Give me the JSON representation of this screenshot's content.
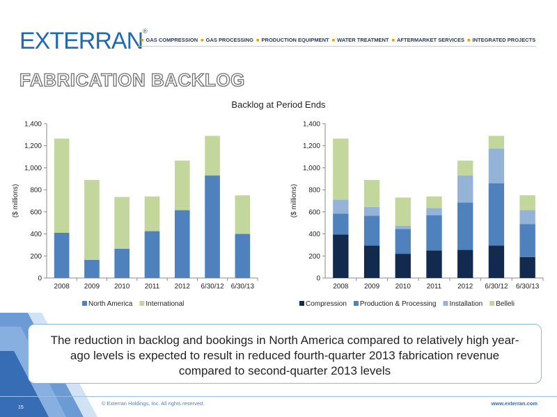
{
  "header": {
    "logo_text": "EXTERRAN",
    "logo_mark": "®",
    "nav_items": [
      "GAS COMPRESSION",
      "GAS PROCESSING",
      "PRODUCTION EQUIPMENT",
      "WATER TREATMENT",
      "AFTERMARKET SERVICES",
      "INTEGRATED PROJECTS"
    ]
  },
  "slide_title": "FABRICATION BACKLOG",
  "shared_chart_title": "Backlog at Period Ends",
  "callout_text": "The reduction in backlog and bookings in North America compared to relatively high year-ago levels is expected to result in reduced fourth-quarter 2013 fabrication revenue compared to second-quarter 2013 levels",
  "footer": {
    "page_number": "15",
    "copyright": "© Exterran Holdings, Inc. All rights reserved.",
    "url": "www.exterran.com"
  },
  "chart_data": [
    {
      "type": "bar",
      "stacked": true,
      "title": "",
      "xlabel": "",
      "ylabel": "($ millions)",
      "ylim": [
        0,
        1400
      ],
      "yticks": [
        0,
        200,
        400,
        600,
        800,
        1000,
        1200,
        1400
      ],
      "ytick_labels": [
        "0",
        "200",
        "400",
        "600",
        "800",
        "1,000",
        "1,200",
        "1,400"
      ],
      "categories": [
        "2008",
        "2009",
        "2010",
        "2011",
        "2012",
        "6/30/12",
        "6/30/13"
      ],
      "series": [
        {
          "name": "North America",
          "color": "#4f81bd",
          "values": [
            410,
            165,
            265,
            425,
            615,
            930,
            400
          ]
        },
        {
          "name": "International",
          "color": "#c3d69b",
          "values": [
            855,
            725,
            470,
            315,
            450,
            360,
            350
          ]
        }
      ],
      "legend_position": "bottom",
      "grid": false
    },
    {
      "type": "bar",
      "stacked": true,
      "title": "",
      "xlabel": "",
      "ylabel": "($ millions)",
      "ylim": [
        0,
        1400
      ],
      "yticks": [
        0,
        200,
        400,
        600,
        800,
        1000,
        1200,
        1400
      ],
      "ytick_labels": [
        "0",
        "200",
        "400",
        "600",
        "800",
        "1,000",
        "1,200",
        "1,400"
      ],
      "categories": [
        "2008",
        "2009",
        "2010",
        "2011",
        "2012",
        "6/30/12",
        "6/30/13"
      ],
      "series": [
        {
          "name": "Compression",
          "color": "#112a4d",
          "values": [
            395,
            295,
            220,
            250,
            255,
            295,
            190
          ]
        },
        {
          "name": "Production & Processing",
          "color": "#4f81bd",
          "values": [
            190,
            270,
            225,
            320,
            430,
            565,
            300
          ]
        },
        {
          "name": "Installation",
          "color": "#95b3d7",
          "values": [
            125,
            80,
            30,
            65,
            245,
            315,
            125
          ]
        },
        {
          "name": "Belleli",
          "color": "#c3d69b",
          "values": [
            555,
            245,
            255,
            105,
            135,
            115,
            135
          ]
        }
      ],
      "legend_position": "bottom",
      "grid": false
    }
  ]
}
